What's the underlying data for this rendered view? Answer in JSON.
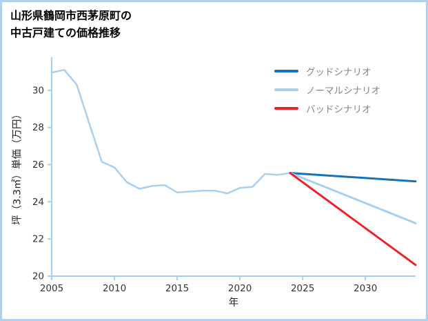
{
  "title": {
    "line1": "山形県鶴岡市西茅原町の",
    "line2": "中古戸建ての価格推移"
  },
  "chart_data": {
    "type": "line",
    "title": "山形県鶴岡市西茅原町の中古戸建ての価格推移",
    "xlabel": "年",
    "ylabel": "坪（3.3㎡）単価（万円）",
    "xlim": [
      2005,
      2034
    ],
    "ylim": [
      20,
      31.7
    ],
    "xticks": [
      2005,
      2010,
      2015,
      2020,
      2025,
      2030
    ],
    "yticks": [
      20,
      22,
      24,
      26,
      28,
      30
    ],
    "grid": false,
    "legend_position": "upper right",
    "axis_color": "#a9cfee",
    "tick_label_color": "#333333",
    "legend_text_color": "#858585",
    "legend": [
      "グッドシナリオ",
      "ノーマルシナリオ",
      "バッドシナリオ"
    ],
    "series": [
      {
        "color": "#a9cfee",
        "width": 2.5,
        "x": [
          2005,
          2006,
          2007,
          2008,
          2009,
          2010,
          2011,
          2012,
          2013,
          2014,
          2015,
          2016,
          2017,
          2018,
          2019,
          2020,
          2021,
          2022,
          2023,
          2024
        ],
        "values": [
          30.95,
          31.1,
          30.3,
          28.2,
          26.15,
          25.85,
          25.05,
          24.7,
          24.85,
          24.9,
          24.5,
          24.55,
          24.6,
          24.6,
          24.45,
          24.75,
          24.8,
          25.5,
          25.45,
          25.55
        ]
      },
      {
        "name": "グッドシナリオ",
        "color": "#1572b6",
        "width": 3,
        "x": [
          2024,
          2034
        ],
        "values": [
          25.55,
          25.1
        ]
      },
      {
        "name": "ノーマルシナリオ",
        "color": "#a9cfee",
        "width": 3,
        "x": [
          2024,
          2034
        ],
        "values": [
          25.55,
          22.85
        ]
      },
      {
        "name": "バッドシナリオ",
        "color": "#e8242a",
        "width": 3,
        "x": [
          2024,
          2034
        ],
        "values": [
          25.55,
          20.6
        ]
      }
    ]
  }
}
